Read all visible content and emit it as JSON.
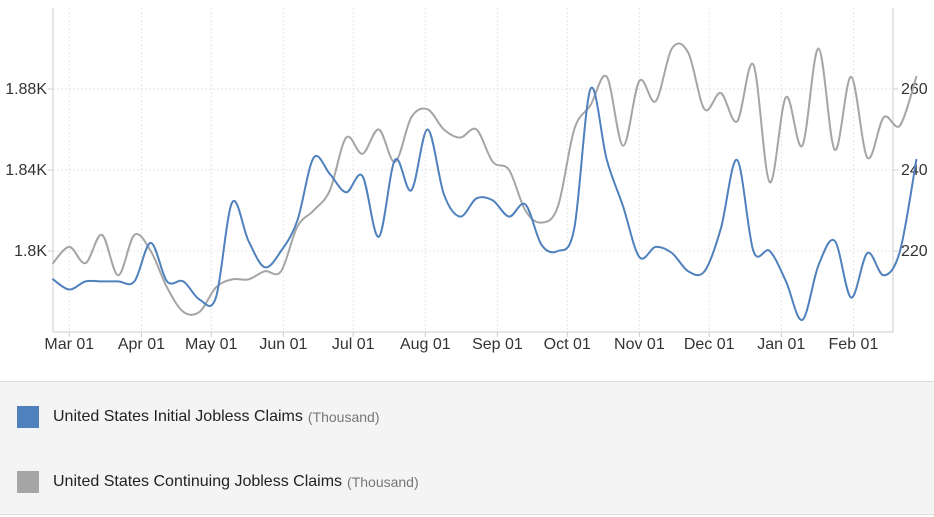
{
  "chart_data": {
    "type": "line",
    "title": "",
    "xlabel": "",
    "ylabel": "",
    "x_tick_labels": [
      "Mar 01",
      "Apr 01",
      "May 01",
      "Jun 01",
      "Jul 01",
      "Aug 01",
      "Sep 01",
      "Oct 01",
      "Nov 01",
      "Dec 01",
      "Jan 01",
      "Feb 01"
    ],
    "y_left": {
      "ticks": [
        1800,
        1840,
        1880
      ],
      "tick_labels": [
        "1.8K",
        "1.84K",
        "1.88K"
      ],
      "range": [
        1760,
        1920
      ]
    },
    "y_right": {
      "ticks": [
        220,
        240,
        260
      ],
      "tick_labels": [
        "220",
        "240",
        "260"
      ],
      "range": [
        200,
        280
      ]
    },
    "x_range": [
      "2022-02-22",
      "2023-02-18"
    ],
    "grid": true,
    "legend_position": "bottom",
    "series": [
      {
        "name": "United States Initial Jobless Claims",
        "unit": "(Thousand)",
        "axis": "left",
        "color": "#4f81bd",
        "points": [
          [
            "2022-02-22",
            1786
          ],
          [
            "2022-03-01",
            1781
          ],
          [
            "2022-03-08",
            1785
          ],
          [
            "2022-03-15",
            1785
          ],
          [
            "2022-03-22",
            1785
          ],
          [
            "2022-03-29",
            1785
          ],
          [
            "2022-04-05",
            1804
          ],
          [
            "2022-04-12",
            1785
          ],
          [
            "2022-04-19",
            1785
          ],
          [
            "2022-04-26",
            1776
          ],
          [
            "2022-05-03",
            1777
          ],
          [
            "2022-05-10",
            1824
          ],
          [
            "2022-05-17",
            1805
          ],
          [
            "2022-05-24",
            1792
          ],
          [
            "2022-05-31",
            1800
          ],
          [
            "2022-06-07",
            1815
          ],
          [
            "2022-06-14",
            1846
          ],
          [
            "2022-06-21",
            1838
          ],
          [
            "2022-06-28",
            1829
          ],
          [
            "2022-07-05",
            1837
          ],
          [
            "2022-07-12",
            1807
          ],
          [
            "2022-07-19",
            1845
          ],
          [
            "2022-07-26",
            1830
          ],
          [
            "2022-08-02",
            1860
          ],
          [
            "2022-08-09",
            1828
          ],
          [
            "2022-08-16",
            1817
          ],
          [
            "2022-08-23",
            1826
          ],
          [
            "2022-08-30",
            1825
          ],
          [
            "2022-09-06",
            1817
          ],
          [
            "2022-09-13",
            1823
          ],
          [
            "2022-09-20",
            1803
          ],
          [
            "2022-09-27",
            1800
          ],
          [
            "2022-10-04",
            1811
          ],
          [
            "2022-10-11",
            1880
          ],
          [
            "2022-10-18",
            1845
          ],
          [
            "2022-10-25",
            1822
          ],
          [
            "2022-11-01",
            1797
          ],
          [
            "2022-11-08",
            1802
          ],
          [
            "2022-11-15",
            1799
          ],
          [
            "2022-11-22",
            1790
          ],
          [
            "2022-11-29",
            1790
          ],
          [
            "2022-12-06",
            1811
          ],
          [
            "2022-12-13",
            1845
          ],
          [
            "2022-12-20",
            1800
          ],
          [
            "2022-12-27",
            1800
          ],
          [
            "2023-01-03",
            1785
          ],
          [
            "2023-01-10",
            1766
          ],
          [
            "2023-01-17",
            1793
          ],
          [
            "2023-01-24",
            1805
          ],
          [
            "2023-01-31",
            1777
          ],
          [
            "2023-02-07",
            1799
          ],
          [
            "2023-02-14",
            1788
          ],
          [
            "2023-02-21",
            1800
          ],
          [
            "2023-02-28",
            1845
          ]
        ]
      },
      {
        "name": "United States Continuing Jobless Claims",
        "unit": "(Thousand)",
        "axis": "right",
        "color": "#a5a5a5",
        "points": [
          [
            "2022-02-22",
            217
          ],
          [
            "2022-03-01",
            221
          ],
          [
            "2022-03-08",
            217
          ],
          [
            "2022-03-15",
            224
          ],
          [
            "2022-03-22",
            214
          ],
          [
            "2022-03-29",
            224
          ],
          [
            "2022-04-05",
            220
          ],
          [
            "2022-04-12",
            211
          ],
          [
            "2022-04-19",
            205
          ],
          [
            "2022-04-26",
            205
          ],
          [
            "2022-05-03",
            211
          ],
          [
            "2022-05-10",
            213
          ],
          [
            "2022-05-17",
            213
          ],
          [
            "2022-05-24",
            215
          ],
          [
            "2022-05-31",
            215
          ],
          [
            "2022-06-07",
            226
          ],
          [
            "2022-06-14",
            230
          ],
          [
            "2022-06-21",
            235
          ],
          [
            "2022-06-28",
            248
          ],
          [
            "2022-07-05",
            244
          ],
          [
            "2022-07-12",
            250
          ],
          [
            "2022-07-19",
            242
          ],
          [
            "2022-07-26",
            253
          ],
          [
            "2022-08-02",
            255
          ],
          [
            "2022-08-09",
            250
          ],
          [
            "2022-08-16",
            248
          ],
          [
            "2022-08-23",
            250
          ],
          [
            "2022-08-30",
            242
          ],
          [
            "2022-09-06",
            240
          ],
          [
            "2022-09-13",
            230
          ],
          [
            "2022-09-20",
            227
          ],
          [
            "2022-09-27",
            231
          ],
          [
            "2022-10-04",
            250
          ],
          [
            "2022-10-11",
            256
          ],
          [
            "2022-10-18",
            263
          ],
          [
            "2022-10-25",
            246
          ],
          [
            "2022-11-01",
            262
          ],
          [
            "2022-11-08",
            257
          ],
          [
            "2022-11-15",
            270
          ],
          [
            "2022-11-22",
            269
          ],
          [
            "2022-11-29",
            255
          ],
          [
            "2022-12-06",
            259
          ],
          [
            "2022-12-13",
            252
          ],
          [
            "2022-12-20",
            266
          ],
          [
            "2022-12-27",
            237
          ],
          [
            "2023-01-03",
            258
          ],
          [
            "2023-01-10",
            246
          ],
          [
            "2023-01-17",
            270
          ],
          [
            "2023-01-24",
            245
          ],
          [
            "2023-01-31",
            263
          ],
          [
            "2023-02-07",
            243
          ],
          [
            "2023-02-14",
            253
          ],
          [
            "2023-02-21",
            251
          ],
          [
            "2023-02-28",
            263
          ]
        ]
      }
    ]
  }
}
